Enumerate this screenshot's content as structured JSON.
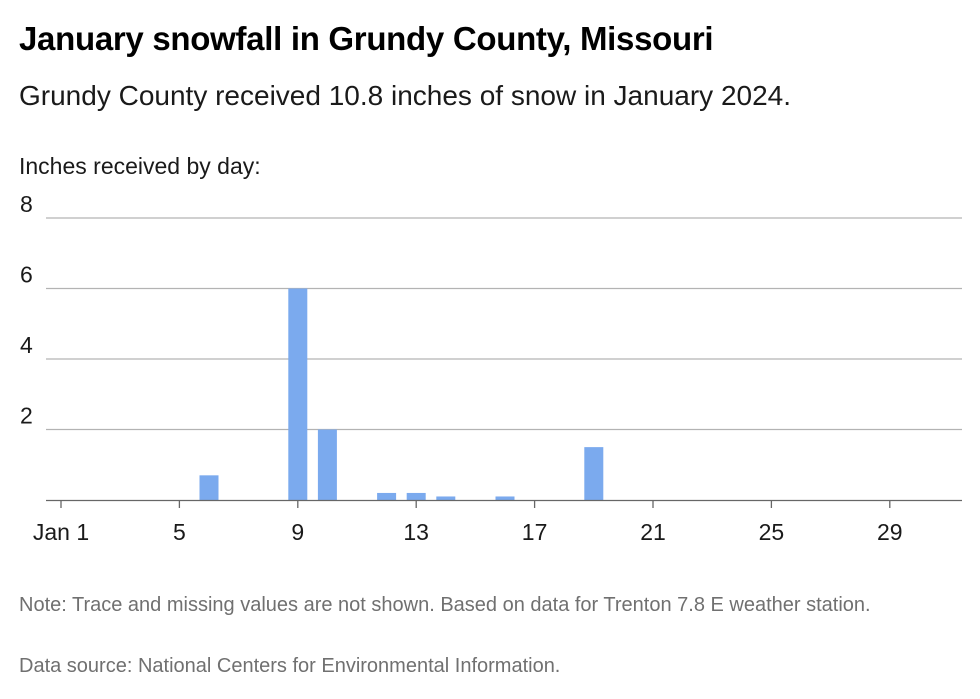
{
  "title": "January snowfall in Grundy County, Missouri",
  "subtitle": "Grundy County received 10.8 inches of snow in January 2024.",
  "notes": "Note: Trace and missing values are not shown. Based on data for Trenton 7.8 E weather station.",
  "source": "Data source: National Centers for Environmental Information.",
  "colors": {
    "bar": "#7baaee",
    "grid": "#b3b3b3",
    "axis": "#666666"
  },
  "chart_data": {
    "type": "bar",
    "title": "January snowfall in Grundy County, Missouri",
    "ylabel": "Inches received by day:",
    "xlabel": "",
    "ylim": [
      0,
      8
    ],
    "xlim": [
      1,
      31
    ],
    "yticks": [
      "2",
      "4",
      "6",
      "8"
    ],
    "xticks": [
      {
        "day": 1,
        "label": "Jan 1"
      },
      {
        "day": 5,
        "label": "5"
      },
      {
        "day": 9,
        "label": "9"
      },
      {
        "day": 13,
        "label": "13"
      },
      {
        "day": 17,
        "label": "17"
      },
      {
        "day": 21,
        "label": "21"
      },
      {
        "day": 25,
        "label": "25"
      },
      {
        "day": 29,
        "label": "29"
      }
    ],
    "grid": true,
    "x": [
      6,
      9,
      10,
      12,
      13,
      14,
      16,
      19
    ],
    "values": [
      0.7,
      6.0,
      2.0,
      0.2,
      0.2,
      0.1,
      0.1,
      1.5
    ]
  }
}
